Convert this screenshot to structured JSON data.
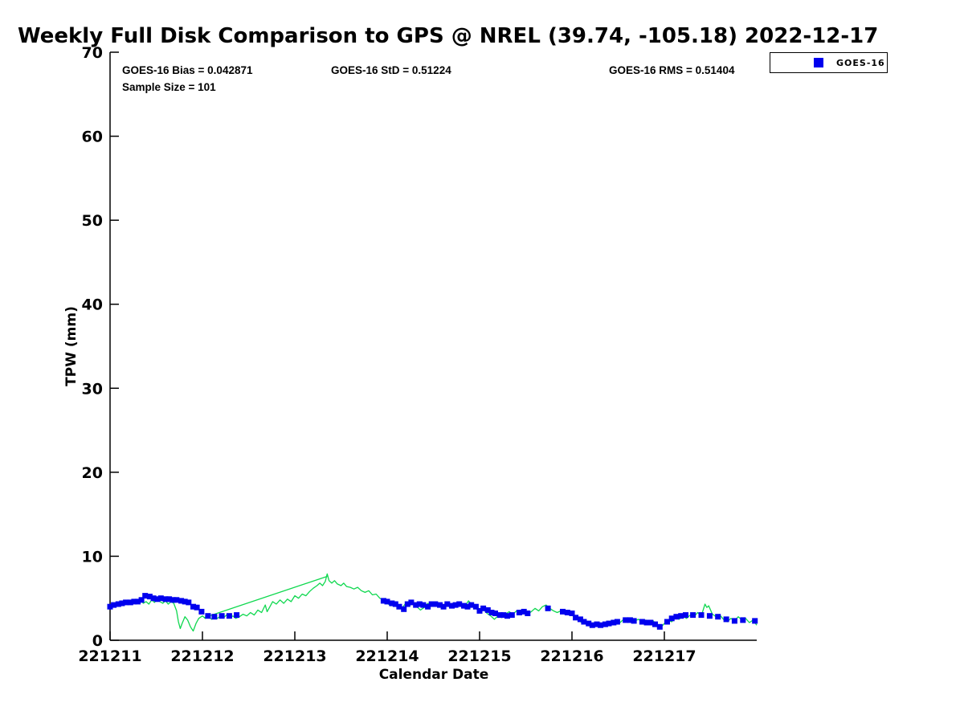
{
  "title": "Weekly Full Disk Comparison to GPS @ NREL (39.74, -105.18) 2022-12-17",
  "stats": {
    "bias": "GOES-16 Bias = 0.042871",
    "std": "GOES-16 StD = 0.51224",
    "rms": "GOES-16 RMS = 0.51404",
    "sample_size": "Sample Size = 101"
  },
  "legend": {
    "position": "top-right",
    "items": [
      {
        "label": "GOES-16",
        "marker": "square",
        "color": "#0000ee"
      }
    ]
  },
  "colors": {
    "goes16": "#0000ee",
    "gps_line": "#0fd84f",
    "axis": "#000000",
    "background": "#ffffff"
  },
  "chart_data": {
    "type": "scatter",
    "title": "Weekly Full Disk Comparison to GPS @ NREL (39.74, -105.18) 2022-12-17",
    "xlabel": "Calendar Date",
    "ylabel": "TPW (mm)",
    "grid": false,
    "legend_position": "top-right",
    "ylim": [
      0,
      70
    ],
    "y_ticks": [
      0,
      10,
      20,
      30,
      40,
      50,
      60,
      70
    ],
    "xlim_days": [
      0,
      7
    ],
    "x_tick_days": [
      0,
      1,
      2,
      3,
      4,
      5,
      6
    ],
    "x_tick_labels": [
      "221211",
      "221212",
      "221213",
      "221214",
      "221215",
      "221216",
      "221217"
    ],
    "units": "mm TPW, x in days (YYMMDD labels)",
    "series": [
      {
        "name": "GPS",
        "type": "line",
        "color": "#0fd84f",
        "points": [
          [
            0.0,
            3.9
          ],
          [
            0.03,
            4.3
          ],
          [
            0.06,
            4.2
          ],
          [
            0.09,
            4.5
          ],
          [
            0.12,
            4.3
          ],
          [
            0.15,
            4.6
          ],
          [
            0.18,
            4.4
          ],
          [
            0.21,
            4.7
          ],
          [
            0.24,
            4.5
          ],
          [
            0.27,
            4.4
          ],
          [
            0.3,
            4.8
          ],
          [
            0.33,
            4.9
          ],
          [
            0.36,
            4.4
          ],
          [
            0.39,
            4.6
          ],
          [
            0.42,
            4.3
          ],
          [
            0.45,
            4.8
          ],
          [
            0.48,
            4.5
          ],
          [
            0.51,
            4.9
          ],
          [
            0.54,
            4.6
          ],
          [
            0.57,
            4.4
          ],
          [
            0.6,
            4.7
          ],
          [
            0.63,
            4.3
          ],
          [
            0.66,
            4.6
          ],
          [
            0.69,
            4.4
          ],
          [
            0.72,
            3.5
          ],
          [
            0.74,
            2.2
          ],
          [
            0.76,
            1.4
          ],
          [
            0.78,
            2.0
          ],
          [
            0.81,
            2.8
          ],
          [
            0.84,
            2.4
          ],
          [
            0.87,
            1.6
          ],
          [
            0.9,
            1.1
          ],
          [
            0.93,
            2.0
          ],
          [
            0.96,
            2.6
          ],
          [
            1.0,
            2.9
          ],
          [
            1.03,
            2.6
          ],
          [
            1.06,
            2.8
          ],
          [
            1.1,
            2.5
          ],
          [
            1.13,
            2.8
          ],
          [
            1.16,
            2.6
          ],
          [
            1.2,
            2.9
          ],
          [
            1.23,
            2.7
          ],
          [
            1.26,
            3.0
          ],
          [
            1.3,
            2.7
          ],
          [
            1.33,
            2.9
          ],
          [
            1.36,
            2.6
          ],
          [
            1.4,
            2.8
          ],
          [
            1.44,
            3.1
          ],
          [
            1.48,
            2.9
          ],
          [
            1.52,
            3.3
          ],
          [
            1.56,
            3.0
          ],
          [
            1.6,
            3.6
          ],
          [
            1.64,
            3.3
          ],
          [
            1.68,
            4.2
          ],
          [
            1.7,
            3.4
          ],
          [
            1.73,
            4.0
          ],
          [
            1.76,
            4.6
          ],
          [
            1.8,
            4.3
          ],
          [
            1.84,
            4.8
          ],
          [
            1.88,
            4.4
          ],
          [
            1.92,
            4.9
          ],
          [
            1.96,
            4.6
          ],
          [
            2.0,
            5.3
          ],
          [
            2.04,
            5.0
          ],
          [
            2.08,
            5.5
          ],
          [
            2.12,
            5.3
          ],
          [
            2.16,
            5.8
          ],
          [
            2.2,
            6.2
          ],
          [
            2.24,
            6.5
          ],
          [
            2.27,
            6.8
          ],
          [
            2.3,
            6.5
          ],
          [
            2.33,
            7.0
          ],
          [
            2.35,
            7.9
          ],
          [
            2.37,
            7.1
          ],
          [
            2.4,
            6.8
          ],
          [
            2.43,
            7.1
          ],
          [
            2.46,
            6.7
          ],
          [
            2.5,
            6.5
          ],
          [
            2.53,
            6.8
          ],
          [
            2.56,
            6.4
          ],
          [
            2.6,
            6.3
          ],
          [
            2.64,
            6.1
          ],
          [
            2.68,
            6.3
          ],
          [
            2.72,
            5.9
          ],
          [
            2.76,
            5.7
          ],
          [
            2.8,
            5.9
          ],
          [
            2.84,
            5.4
          ],
          [
            2.88,
            5.5
          ],
          [
            2.92,
            5.0
          ],
          [
            2.96,
            4.8
          ],
          [
            3.0,
            4.4
          ],
          [
            3.04,
            4.1
          ],
          [
            3.08,
            4.4
          ],
          [
            3.12,
            3.9
          ],
          [
            3.16,
            3.8
          ],
          [
            3.2,
            4.4
          ],
          [
            3.24,
            4.1
          ],
          [
            3.28,
            4.5
          ],
          [
            3.32,
            4.0
          ],
          [
            3.36,
            3.6
          ],
          [
            3.4,
            3.9
          ],
          [
            3.44,
            4.4
          ],
          [
            3.48,
            4.1
          ],
          [
            3.52,
            4.4
          ],
          [
            3.56,
            4.1
          ],
          [
            3.6,
            4.0
          ],
          [
            3.64,
            4.3
          ],
          [
            3.68,
            3.9
          ],
          [
            3.72,
            4.2
          ],
          [
            3.76,
            4.0
          ],
          [
            3.8,
            4.3
          ],
          [
            3.84,
            4.0
          ],
          [
            3.88,
            4.7
          ],
          [
            3.92,
            4.2
          ],
          [
            3.96,
            3.8
          ],
          [
            4.0,
            3.4
          ],
          [
            4.04,
            3.7
          ],
          [
            4.08,
            3.2
          ],
          [
            4.12,
            2.9
          ],
          [
            4.16,
            2.5
          ],
          [
            4.2,
            2.9
          ],
          [
            4.24,
            2.7
          ],
          [
            4.28,
            3.1
          ],
          [
            4.32,
            3.4
          ],
          [
            4.36,
            3.1
          ],
          [
            4.4,
            3.5
          ],
          [
            4.44,
            3.3
          ],
          [
            4.48,
            3.6
          ],
          [
            4.52,
            3.1
          ],
          [
            4.56,
            3.4
          ],
          [
            4.6,
            3.8
          ],
          [
            4.64,
            3.5
          ],
          [
            4.68,
            4.0
          ],
          [
            4.72,
            4.2
          ],
          [
            4.76,
            3.8
          ],
          [
            4.8,
            3.5
          ],
          [
            4.84,
            3.3
          ],
          [
            4.88,
            3.5
          ],
          [
            4.92,
            3.2
          ],
          [
            4.96,
            3.4
          ],
          [
            5.0,
            3.0
          ],
          [
            5.04,
            2.6
          ],
          [
            5.08,
            2.3
          ],
          [
            5.12,
            2.0
          ],
          [
            5.16,
            2.2
          ],
          [
            5.2,
            1.9
          ],
          [
            5.24,
            1.7
          ],
          [
            5.28,
            2.0
          ],
          [
            5.32,
            1.6
          ],
          [
            5.36,
            1.9
          ],
          [
            5.4,
            2.2
          ],
          [
            5.44,
            2.0
          ],
          [
            5.48,
            2.3
          ],
          [
            5.52,
            2.1
          ],
          [
            5.56,
            2.5
          ],
          [
            5.6,
            2.2
          ],
          [
            5.64,
            2.6
          ],
          [
            5.68,
            2.3
          ],
          [
            5.72,
            2.5
          ],
          [
            5.76,
            2.2
          ],
          [
            5.8,
            2.4
          ],
          [
            5.84,
            2.1
          ],
          [
            5.88,
            2.3
          ],
          [
            5.92,
            1.8
          ],
          [
            5.96,
            1.5
          ],
          [
            6.0,
            2.0
          ],
          [
            6.04,
            2.4
          ],
          [
            6.08,
            2.2
          ],
          [
            6.12,
            2.7
          ],
          [
            6.16,
            2.5
          ],
          [
            6.2,
            2.9
          ],
          [
            6.24,
            2.6
          ],
          [
            6.28,
            3.0
          ],
          [
            6.32,
            2.8
          ],
          [
            6.36,
            3.3
          ],
          [
            6.4,
            2.9
          ],
          [
            6.44,
            4.3
          ],
          [
            6.46,
            3.9
          ],
          [
            6.48,
            4.1
          ],
          [
            6.52,
            3.1
          ],
          [
            6.56,
            2.8
          ],
          [
            6.6,
            3.0
          ],
          [
            6.64,
            2.5
          ],
          [
            6.68,
            2.2
          ],
          [
            6.72,
            2.6
          ],
          [
            6.76,
            2.3
          ],
          [
            6.8,
            2.8
          ],
          [
            6.84,
            2.4
          ],
          [
            6.88,
            2.6
          ],
          [
            6.92,
            2.1
          ],
          [
            6.96,
            2.4
          ],
          [
            7.0,
            1.8
          ]
        ]
      },
      {
        "name": "GPS-gap-chord",
        "type": "line",
        "color": "#0fd84f",
        "points": [
          [
            1.02,
            2.7
          ],
          [
            2.35,
            7.6
          ]
        ]
      },
      {
        "name": "GOES-16",
        "type": "scatter",
        "marker": "square",
        "marker_size_px": 7,
        "color": "#0000ee",
        "points": [
          [
            0.0,
            4.0
          ],
          [
            0.04,
            4.2
          ],
          [
            0.09,
            4.3
          ],
          [
            0.13,
            4.4
          ],
          [
            0.17,
            4.5
          ],
          [
            0.22,
            4.5
          ],
          [
            0.26,
            4.6
          ],
          [
            0.3,
            4.6
          ],
          [
            0.34,
            4.8
          ],
          [
            0.38,
            5.3
          ],
          [
            0.43,
            5.2
          ],
          [
            0.47,
            5.0
          ],
          [
            0.51,
            4.9
          ],
          [
            0.55,
            5.0
          ],
          [
            0.6,
            4.9
          ],
          [
            0.64,
            4.9
          ],
          [
            0.68,
            4.8
          ],
          [
            0.72,
            4.8
          ],
          [
            0.77,
            4.7
          ],
          [
            0.81,
            4.6
          ],
          [
            0.85,
            4.5
          ],
          [
            0.9,
            4.0
          ],
          [
            0.94,
            3.9
          ],
          [
            0.99,
            3.4
          ],
          [
            1.06,
            2.9
          ],
          [
            1.13,
            2.8
          ],
          [
            1.21,
            2.9
          ],
          [
            1.29,
            2.9
          ],
          [
            1.37,
            3.0
          ],
          [
            2.96,
            4.7
          ],
          [
            3.0,
            4.6
          ],
          [
            3.05,
            4.4
          ],
          [
            3.09,
            4.3
          ],
          [
            3.13,
            4.0
          ],
          [
            3.18,
            3.7
          ],
          [
            3.22,
            4.3
          ],
          [
            3.26,
            4.5
          ],
          [
            3.31,
            4.2
          ],
          [
            3.35,
            4.3
          ],
          [
            3.39,
            4.2
          ],
          [
            3.44,
            4.0
          ],
          [
            3.48,
            4.3
          ],
          [
            3.52,
            4.3
          ],
          [
            3.57,
            4.2
          ],
          [
            3.61,
            4.0
          ],
          [
            3.65,
            4.3
          ],
          [
            3.7,
            4.1
          ],
          [
            3.74,
            4.2
          ],
          [
            3.78,
            4.3
          ],
          [
            3.83,
            4.1
          ],
          [
            3.87,
            4.0
          ],
          [
            3.91,
            4.2
          ],
          [
            3.96,
            4.0
          ],
          [
            4.0,
            3.5
          ],
          [
            4.04,
            3.8
          ],
          [
            4.09,
            3.6
          ],
          [
            4.13,
            3.3
          ],
          [
            4.17,
            3.2
          ],
          [
            4.22,
            3.0
          ],
          [
            4.26,
            3.0
          ],
          [
            4.3,
            2.9
          ],
          [
            4.35,
            3.0
          ],
          [
            4.43,
            3.3
          ],
          [
            4.48,
            3.4
          ],
          [
            4.52,
            3.2
          ],
          [
            4.74,
            3.8
          ],
          [
            4.9,
            3.4
          ],
          [
            4.95,
            3.3
          ],
          [
            5.0,
            3.2
          ],
          [
            5.04,
            2.7
          ],
          [
            5.09,
            2.5
          ],
          [
            5.13,
            2.2
          ],
          [
            5.18,
            2.0
          ],
          [
            5.22,
            1.8
          ],
          [
            5.27,
            1.9
          ],
          [
            5.31,
            1.8
          ],
          [
            5.36,
            1.9
          ],
          [
            5.4,
            2.0
          ],
          [
            5.45,
            2.1
          ],
          [
            5.49,
            2.2
          ],
          [
            5.58,
            2.4
          ],
          [
            5.63,
            2.4
          ],
          [
            5.67,
            2.3
          ],
          [
            5.76,
            2.2
          ],
          [
            5.81,
            2.1
          ],
          [
            5.85,
            2.1
          ],
          [
            5.9,
            1.9
          ],
          [
            5.95,
            1.6
          ],
          [
            6.03,
            2.2
          ],
          [
            6.08,
            2.6
          ],
          [
            6.13,
            2.8
          ],
          [
            6.18,
            2.9
          ],
          [
            6.23,
            3.0
          ],
          [
            6.31,
            3.0
          ],
          [
            6.4,
            3.0
          ],
          [
            6.49,
            2.9
          ],
          [
            6.58,
            2.8
          ],
          [
            6.67,
            2.5
          ],
          [
            6.76,
            2.3
          ],
          [
            6.85,
            2.4
          ],
          [
            6.98,
            2.3
          ]
        ]
      }
    ]
  }
}
